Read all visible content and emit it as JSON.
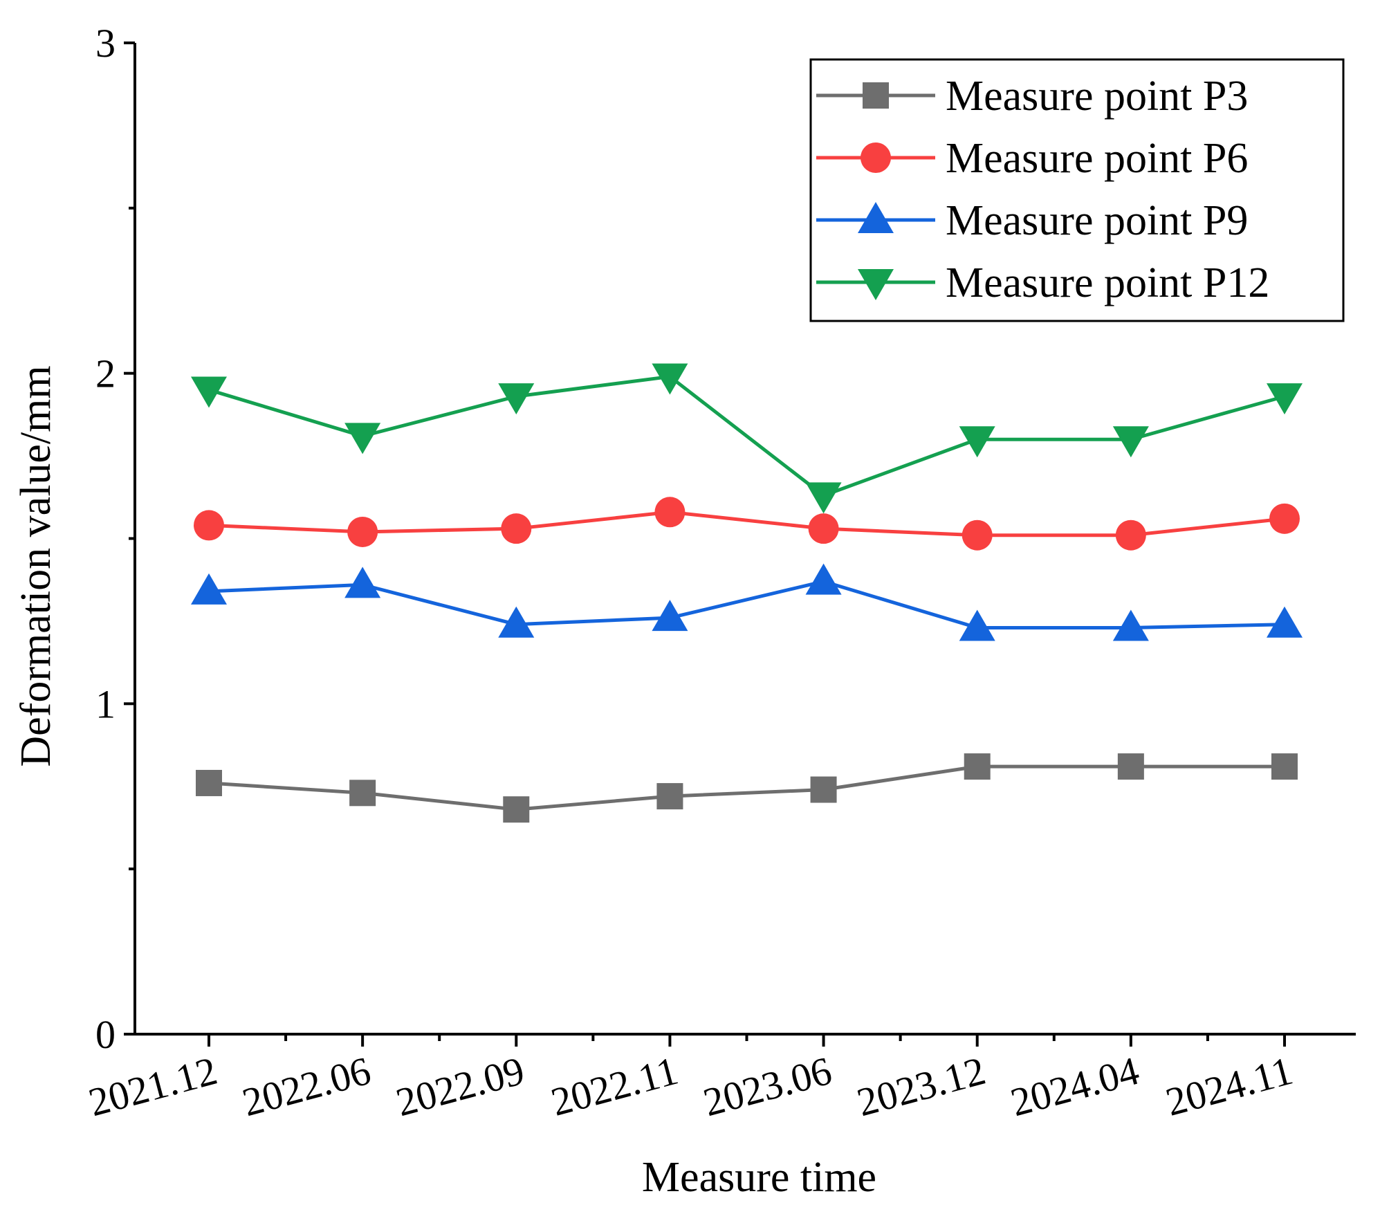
{
  "chart_data": {
    "type": "line",
    "title": "",
    "xlabel": "Measure time",
    "ylabel": "Deformation value/mm",
    "categories": [
      "2021.12",
      "2022.06",
      "2022.09",
      "2022.11",
      "2023.06",
      "2023.12",
      "2024.04",
      "2024.11"
    ],
    "ylim": [
      0,
      3
    ],
    "yticks": [
      "0",
      "1",
      "2",
      "3"
    ],
    "grid": false,
    "legend_position": "top-right",
    "series": [
      {
        "name": "Measure point P3",
        "marker": "square",
        "color": "#6e6e6e",
        "values": [
          0.76,
          0.73,
          0.68,
          0.72,
          0.74,
          0.81,
          0.81,
          0.81
        ]
      },
      {
        "name": "Measure point P6",
        "marker": "circle",
        "color": "#f84040",
        "values": [
          1.54,
          1.52,
          1.53,
          1.58,
          1.53,
          1.51,
          1.51,
          1.56
        ]
      },
      {
        "name": "Measure point P9",
        "marker": "triangle-up",
        "color": "#1464dc",
        "values": [
          1.34,
          1.36,
          1.24,
          1.26,
          1.37,
          1.23,
          1.23,
          1.24
        ]
      },
      {
        "name": "Measure point P12",
        "marker": "triangle-down",
        "color": "#14a050",
        "values": [
          1.95,
          1.81,
          1.93,
          1.99,
          1.63,
          1.8,
          1.8,
          1.93
        ]
      }
    ]
  }
}
